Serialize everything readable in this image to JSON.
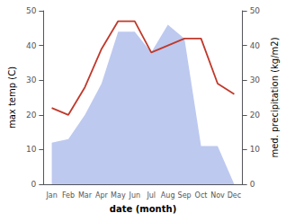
{
  "chart_data": {
    "type": "line",
    "categories": [
      "Jan",
      "Feb",
      "Mar",
      "Apr",
      "May",
      "Jun",
      "Jul",
      "Aug",
      "Sep",
      "Oct",
      "Nov",
      "Dec"
    ],
    "series": [
      {
        "type": "area",
        "color": "#bdc9ef",
        "values": [
          12,
          13,
          20,
          29,
          44,
          44,
          38,
          46,
          42,
          11,
          11,
          0
        ]
      },
      {
        "type": "line",
        "color": "#c0392b",
        "values": [
          22,
          20,
          28,
          39,
          47,
          47,
          38,
          40,
          42,
          42,
          29,
          26
        ]
      }
    ],
    "xlabel": "date (month)",
    "ylabel": "max temp (C)",
    "y2label": "med. precipitation (kg/m2)",
    "ylim": [
      0,
      50
    ],
    "yticks": [
      0,
      10,
      20,
      30,
      40,
      50
    ],
    "y2lim": [
      0,
      50
    ],
    "y2ticks": [
      0,
      10,
      20,
      30,
      40,
      50
    ],
    "grid": false
  }
}
